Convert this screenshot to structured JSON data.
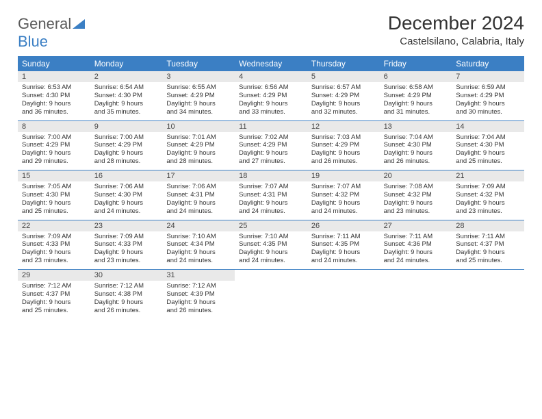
{
  "logo": {
    "word_gray": "General",
    "word_blue": "Blue"
  },
  "title": {
    "month": "December 2024",
    "location": "Castelsilano, Calabria, Italy"
  },
  "day_headers": [
    "Sunday",
    "Monday",
    "Tuesday",
    "Wednesday",
    "Thursday",
    "Friday",
    "Saturday"
  ],
  "colors": {
    "header_bg": "#3b7fc4",
    "header_text": "#ffffff",
    "daynum_bg": "#e9e9e9",
    "rule": "#3b7fc4",
    "text": "#333333",
    "logo_gray": "#5b5b5b",
    "logo_blue": "#3b7fc4",
    "background": "#ffffff"
  },
  "typography": {
    "month_fontsize": 28,
    "location_fontsize": 15,
    "dayheader_fontsize": 12,
    "daynum_fontsize": 11,
    "body_fontsize": 9.5
  },
  "weeks": [
    [
      {
        "n": "1",
        "sr": "Sunrise: 6:53 AM",
        "ss": "Sunset: 4:30 PM",
        "d1": "Daylight: 9 hours",
        "d2": "and 36 minutes."
      },
      {
        "n": "2",
        "sr": "Sunrise: 6:54 AM",
        "ss": "Sunset: 4:30 PM",
        "d1": "Daylight: 9 hours",
        "d2": "and 35 minutes."
      },
      {
        "n": "3",
        "sr": "Sunrise: 6:55 AM",
        "ss": "Sunset: 4:29 PM",
        "d1": "Daylight: 9 hours",
        "d2": "and 34 minutes."
      },
      {
        "n": "4",
        "sr": "Sunrise: 6:56 AM",
        "ss": "Sunset: 4:29 PM",
        "d1": "Daylight: 9 hours",
        "d2": "and 33 minutes."
      },
      {
        "n": "5",
        "sr": "Sunrise: 6:57 AM",
        "ss": "Sunset: 4:29 PM",
        "d1": "Daylight: 9 hours",
        "d2": "and 32 minutes."
      },
      {
        "n": "6",
        "sr": "Sunrise: 6:58 AM",
        "ss": "Sunset: 4:29 PM",
        "d1": "Daylight: 9 hours",
        "d2": "and 31 minutes."
      },
      {
        "n": "7",
        "sr": "Sunrise: 6:59 AM",
        "ss": "Sunset: 4:29 PM",
        "d1": "Daylight: 9 hours",
        "d2": "and 30 minutes."
      }
    ],
    [
      {
        "n": "8",
        "sr": "Sunrise: 7:00 AM",
        "ss": "Sunset: 4:29 PM",
        "d1": "Daylight: 9 hours",
        "d2": "and 29 minutes."
      },
      {
        "n": "9",
        "sr": "Sunrise: 7:00 AM",
        "ss": "Sunset: 4:29 PM",
        "d1": "Daylight: 9 hours",
        "d2": "and 28 minutes."
      },
      {
        "n": "10",
        "sr": "Sunrise: 7:01 AM",
        "ss": "Sunset: 4:29 PM",
        "d1": "Daylight: 9 hours",
        "d2": "and 28 minutes."
      },
      {
        "n": "11",
        "sr": "Sunrise: 7:02 AM",
        "ss": "Sunset: 4:29 PM",
        "d1": "Daylight: 9 hours",
        "d2": "and 27 minutes."
      },
      {
        "n": "12",
        "sr": "Sunrise: 7:03 AM",
        "ss": "Sunset: 4:29 PM",
        "d1": "Daylight: 9 hours",
        "d2": "and 26 minutes."
      },
      {
        "n": "13",
        "sr": "Sunrise: 7:04 AM",
        "ss": "Sunset: 4:30 PM",
        "d1": "Daylight: 9 hours",
        "d2": "and 26 minutes."
      },
      {
        "n": "14",
        "sr": "Sunrise: 7:04 AM",
        "ss": "Sunset: 4:30 PM",
        "d1": "Daylight: 9 hours",
        "d2": "and 25 minutes."
      }
    ],
    [
      {
        "n": "15",
        "sr": "Sunrise: 7:05 AM",
        "ss": "Sunset: 4:30 PM",
        "d1": "Daylight: 9 hours",
        "d2": "and 25 minutes."
      },
      {
        "n": "16",
        "sr": "Sunrise: 7:06 AM",
        "ss": "Sunset: 4:30 PM",
        "d1": "Daylight: 9 hours",
        "d2": "and 24 minutes."
      },
      {
        "n": "17",
        "sr": "Sunrise: 7:06 AM",
        "ss": "Sunset: 4:31 PM",
        "d1": "Daylight: 9 hours",
        "d2": "and 24 minutes."
      },
      {
        "n": "18",
        "sr": "Sunrise: 7:07 AM",
        "ss": "Sunset: 4:31 PM",
        "d1": "Daylight: 9 hours",
        "d2": "and 24 minutes."
      },
      {
        "n": "19",
        "sr": "Sunrise: 7:07 AM",
        "ss": "Sunset: 4:32 PM",
        "d1": "Daylight: 9 hours",
        "d2": "and 24 minutes."
      },
      {
        "n": "20",
        "sr": "Sunrise: 7:08 AM",
        "ss": "Sunset: 4:32 PM",
        "d1": "Daylight: 9 hours",
        "d2": "and 23 minutes."
      },
      {
        "n": "21",
        "sr": "Sunrise: 7:09 AM",
        "ss": "Sunset: 4:32 PM",
        "d1": "Daylight: 9 hours",
        "d2": "and 23 minutes."
      }
    ],
    [
      {
        "n": "22",
        "sr": "Sunrise: 7:09 AM",
        "ss": "Sunset: 4:33 PM",
        "d1": "Daylight: 9 hours",
        "d2": "and 23 minutes."
      },
      {
        "n": "23",
        "sr": "Sunrise: 7:09 AM",
        "ss": "Sunset: 4:33 PM",
        "d1": "Daylight: 9 hours",
        "d2": "and 23 minutes."
      },
      {
        "n": "24",
        "sr": "Sunrise: 7:10 AM",
        "ss": "Sunset: 4:34 PM",
        "d1": "Daylight: 9 hours",
        "d2": "and 24 minutes."
      },
      {
        "n": "25",
        "sr": "Sunrise: 7:10 AM",
        "ss": "Sunset: 4:35 PM",
        "d1": "Daylight: 9 hours",
        "d2": "and 24 minutes."
      },
      {
        "n": "26",
        "sr": "Sunrise: 7:11 AM",
        "ss": "Sunset: 4:35 PM",
        "d1": "Daylight: 9 hours",
        "d2": "and 24 minutes."
      },
      {
        "n": "27",
        "sr": "Sunrise: 7:11 AM",
        "ss": "Sunset: 4:36 PM",
        "d1": "Daylight: 9 hours",
        "d2": "and 24 minutes."
      },
      {
        "n": "28",
        "sr": "Sunrise: 7:11 AM",
        "ss": "Sunset: 4:37 PM",
        "d1": "Daylight: 9 hours",
        "d2": "and 25 minutes."
      }
    ],
    [
      {
        "n": "29",
        "sr": "Sunrise: 7:12 AM",
        "ss": "Sunset: 4:37 PM",
        "d1": "Daylight: 9 hours",
        "d2": "and 25 minutes."
      },
      {
        "n": "30",
        "sr": "Sunrise: 7:12 AM",
        "ss": "Sunset: 4:38 PM",
        "d1": "Daylight: 9 hours",
        "d2": "and 26 minutes."
      },
      {
        "n": "31",
        "sr": "Sunrise: 7:12 AM",
        "ss": "Sunset: 4:39 PM",
        "d1": "Daylight: 9 hours",
        "d2": "and 26 minutes."
      },
      {
        "empty": true
      },
      {
        "empty": true
      },
      {
        "empty": true
      },
      {
        "empty": true
      }
    ]
  ]
}
